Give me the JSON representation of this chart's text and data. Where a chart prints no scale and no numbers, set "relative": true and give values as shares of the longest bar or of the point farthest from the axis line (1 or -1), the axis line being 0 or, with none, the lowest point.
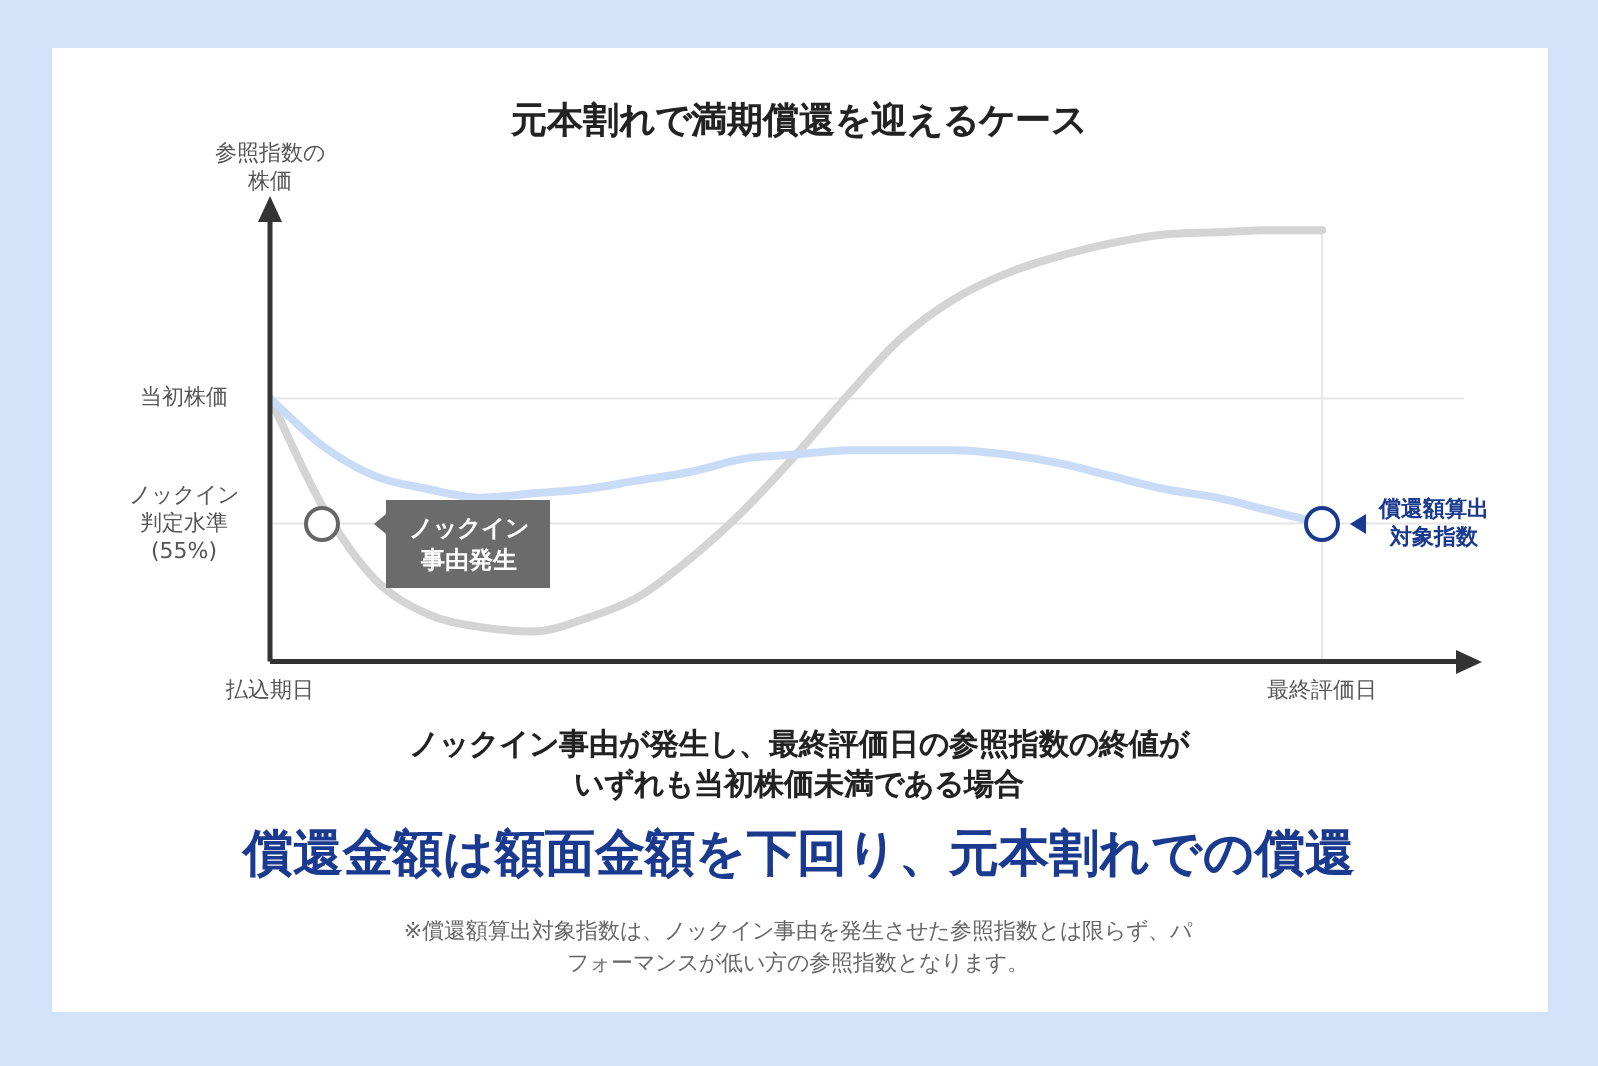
{
  "chart_data": {
    "type": "line",
    "relative": true,
    "title": "元本割れで満期償還を迎えるケース",
    "ylabel": "参照指数の株価",
    "categories": [
      "払込期日",
      null,
      null,
      null,
      null,
      null,
      null,
      null,
      null,
      null,
      null,
      null,
      null,
      null,
      null,
      null,
      null,
      null,
      null,
      null,
      "最終評価日"
    ],
    "series": [
      {
        "color": "#d4d4d4",
        "values": [
          0.61,
          0.36,
          0.19,
          0.11,
          0.08,
          0.07,
          0.1,
          0.15,
          0.24,
          0.35,
          0.48,
          0.62,
          0.75,
          0.84,
          0.9,
          0.94,
          0.97,
          0.99,
          0.995,
          1,
          1
        ]
      },
      {
        "color": "#c9dcf7",
        "values": [
          0.61,
          0.5,
          0.43,
          0.4,
          0.38,
          0.39,
          0.4,
          0.42,
          0.44,
          0.47,
          0.48,
          0.49,
          0.49,
          0.49,
          0.48,
          0.46,
          0.43,
          0.4,
          0.38,
          0.35,
          0.32
        ]
      }
    ],
    "ref_lines": [
      {
        "axis": "y",
        "value": 0.61,
        "label": "当初株価",
        "color": "#e6e6e6"
      },
      {
        "axis": "y",
        "value": 0.32,
        "label": "ノックイン判定水準(55%)",
        "color": "#e6e6e6"
      },
      {
        "axis": "x",
        "value": "最終評価日",
        "label": null,
        "color": "#e6e6e6"
      }
    ],
    "annotations": [
      "ノックイン事由発生",
      "償還額算出対象指数",
      "ノックイン事由が発生し、最終評価日の参照指数の終値がいずれも当初株価未満である場合",
      "償還金額は額面金額を下回り、元本割れでの償還",
      "※償還額算出対象指数は、ノックイン事由を発生させた参照指数とは限らず、パフォーマンスが低い方の参照指数となります。"
    ],
    "grid": false,
    "legend": false,
    "marker": "none",
    "line_style": "solid"
  }
}
